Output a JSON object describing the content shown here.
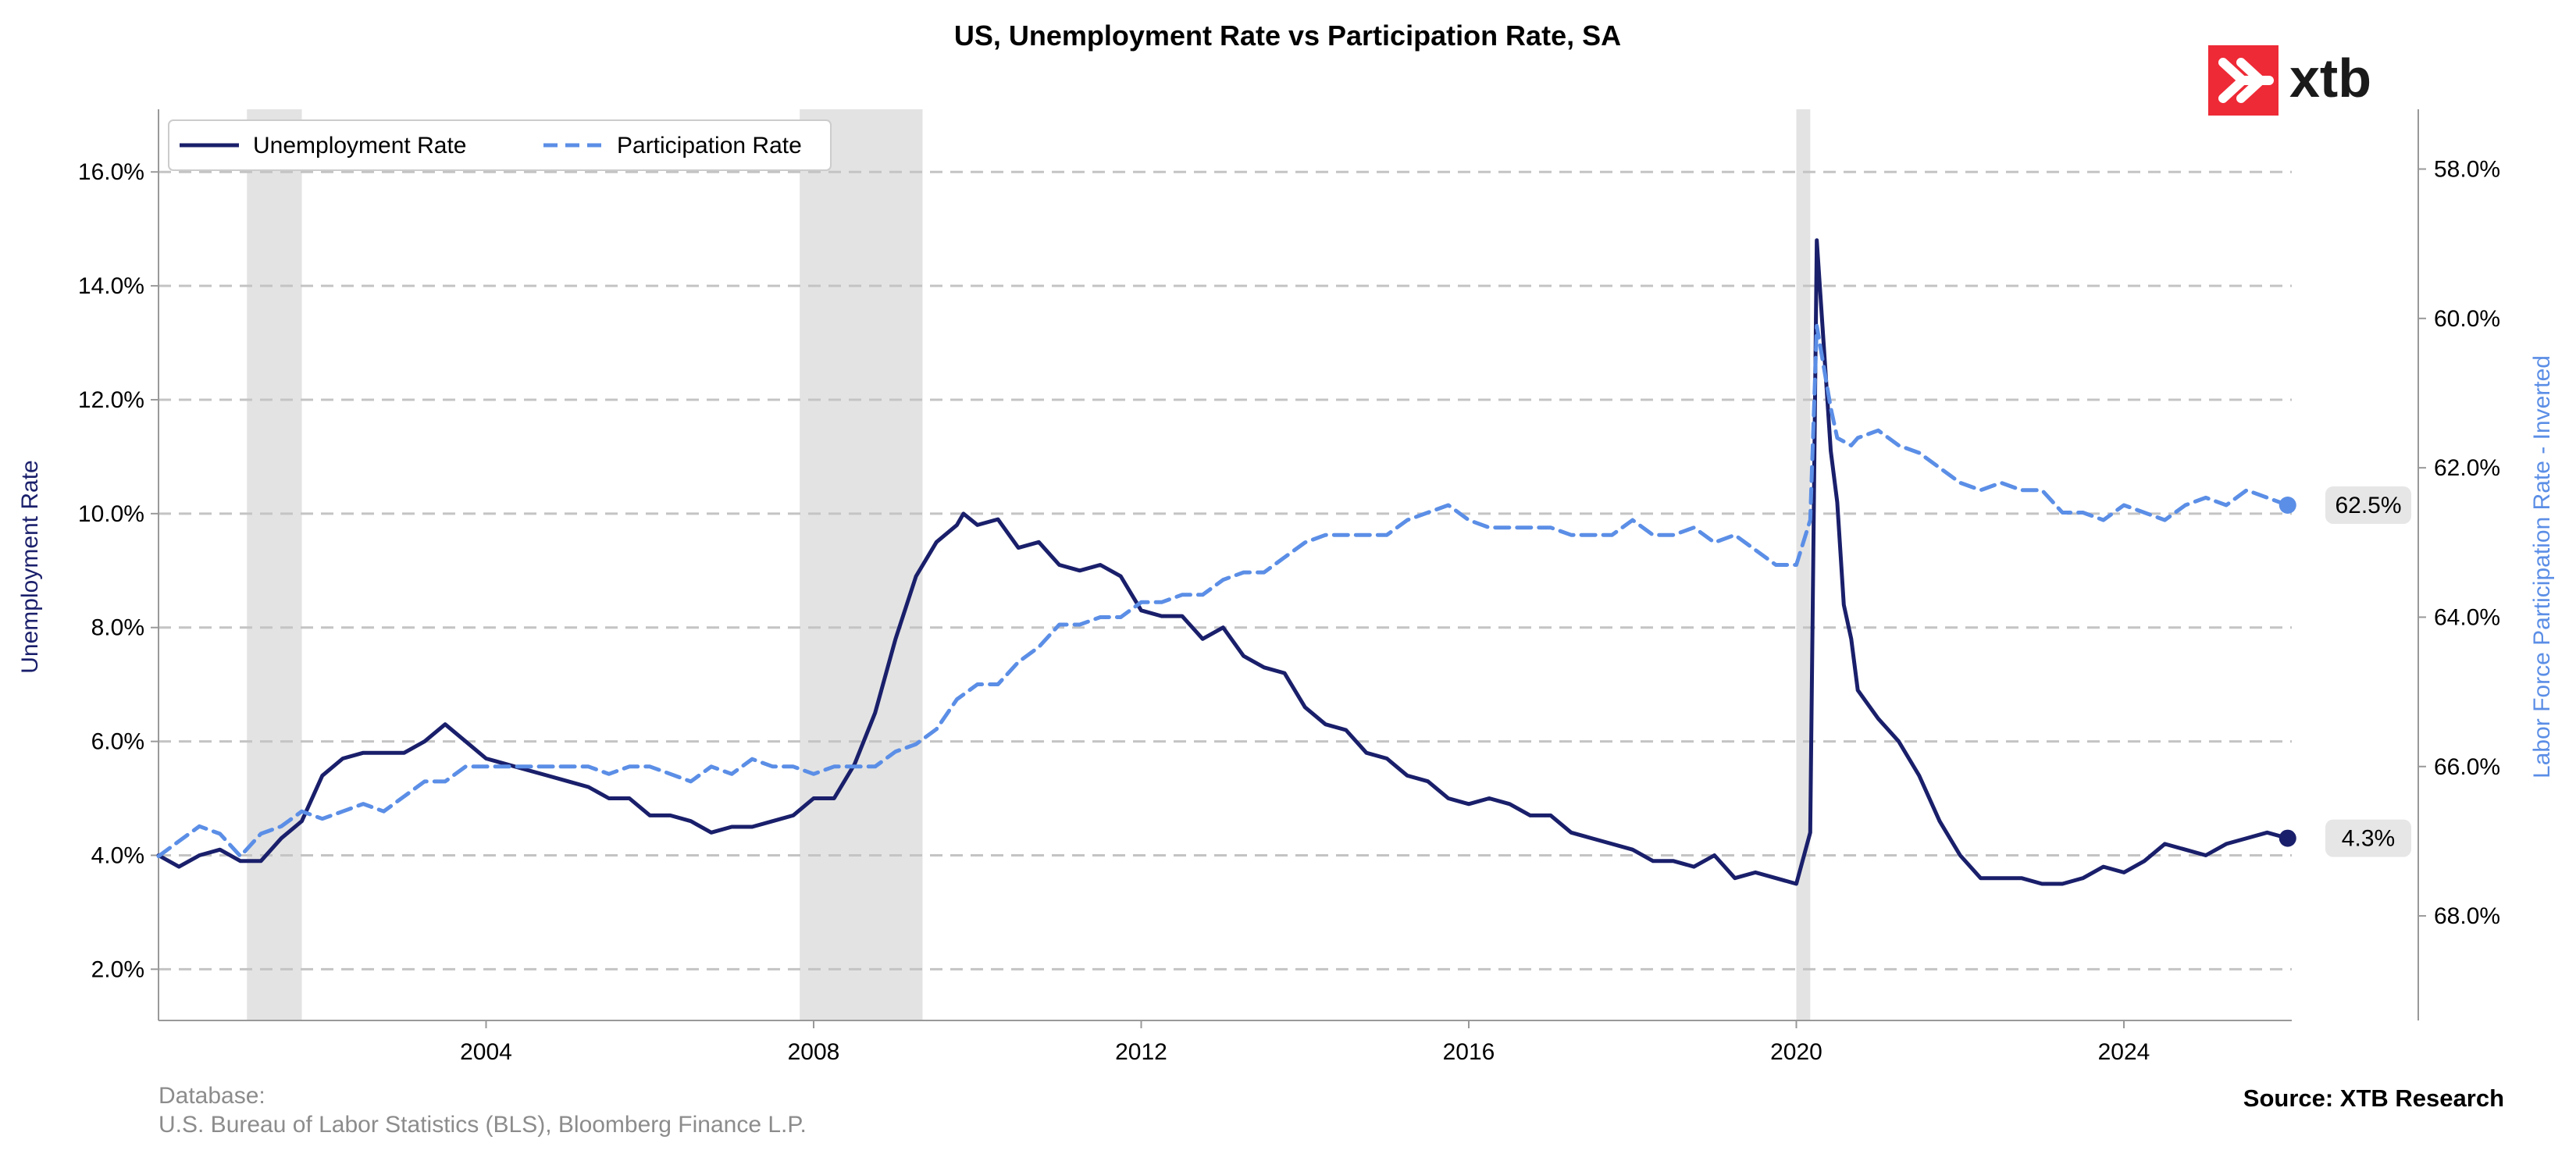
{
  "brand": {
    "logo_text": "xtb",
    "logo_color": "#ee2a36"
  },
  "footer": {
    "database_label": "Database:",
    "database_sources": "U.S. Bureau of Labor Statistics (BLS), Bloomberg Finance L.P.",
    "source": "Source: XTB Research"
  },
  "chart_data": {
    "type": "line",
    "title": "US, Unemployment Rate vs Participation Rate, SA",
    "xlabel": "",
    "ylabel_left": "Unemployment Rate",
    "ylabel_right": "Labor Force Participation Rate - Inverted",
    "x_range": [
      2000.0,
      2026.05
    ],
    "x_ticks": [
      2004,
      2008,
      2012,
      2016,
      2020,
      2024
    ],
    "y_left_range": [
      1.1,
      17.1
    ],
    "y_left_ticks": [
      "2.0%",
      "4.0%",
      "6.0%",
      "8.0%",
      "10.0%",
      "12.0%",
      "14.0%",
      "16.0%"
    ],
    "y_left_tick_values": [
      2,
      4,
      6,
      8,
      10,
      12,
      14,
      16
    ],
    "y_right_range": [
      69.4,
      57.2
    ],
    "y_right_inverted": true,
    "y_right_ticks": [
      "58.0%",
      "60.0%",
      "62.0%",
      "64.0%",
      "66.0%",
      "68.0%"
    ],
    "y_right_tick_values": [
      58,
      60,
      62,
      64,
      66,
      68
    ],
    "grid": "horizontal-dashed",
    "legend_position": "top-left",
    "recessions": [
      [
        2001.08,
        2001.75
      ],
      [
        2007.83,
        2009.33
      ],
      [
        2020.0,
        2020.17
      ]
    ],
    "series": [
      {
        "name": "Unemployment Rate",
        "axis": "left",
        "color": "#1a1f6b",
        "style": "solid",
        "last_label": "4.3%",
        "points": [
          [
            2000.0,
            4.0
          ],
          [
            2000.25,
            3.8
          ],
          [
            2000.5,
            4.0
          ],
          [
            2000.75,
            4.1
          ],
          [
            2001.0,
            3.9
          ],
          [
            2001.25,
            3.9
          ],
          [
            2001.5,
            4.3
          ],
          [
            2001.75,
            4.6
          ],
          [
            2002.0,
            5.4
          ],
          [
            2002.25,
            5.7
          ],
          [
            2002.5,
            5.8
          ],
          [
            2002.75,
            5.8
          ],
          [
            2003.0,
            5.8
          ],
          [
            2003.25,
            6.0
          ],
          [
            2003.5,
            6.3
          ],
          [
            2003.75,
            6.0
          ],
          [
            2004.0,
            5.7
          ],
          [
            2004.25,
            5.6
          ],
          [
            2004.5,
            5.5
          ],
          [
            2004.75,
            5.4
          ],
          [
            2005.0,
            5.3
          ],
          [
            2005.25,
            5.2
          ],
          [
            2005.5,
            5.0
          ],
          [
            2005.75,
            5.0
          ],
          [
            2006.0,
            4.7
          ],
          [
            2006.25,
            4.7
          ],
          [
            2006.5,
            4.6
          ],
          [
            2006.75,
            4.4
          ],
          [
            2007.0,
            4.5
          ],
          [
            2007.25,
            4.5
          ],
          [
            2007.5,
            4.6
          ],
          [
            2007.75,
            4.7
          ],
          [
            2008.0,
            5.0
          ],
          [
            2008.25,
            5.0
          ],
          [
            2008.5,
            5.6
          ],
          [
            2008.75,
            6.5
          ],
          [
            2009.0,
            7.8
          ],
          [
            2009.25,
            8.9
          ],
          [
            2009.5,
            9.5
          ],
          [
            2009.75,
            9.8
          ],
          [
            2009.83,
            10.0
          ],
          [
            2010.0,
            9.8
          ],
          [
            2010.25,
            9.9
          ],
          [
            2010.5,
            9.4
          ],
          [
            2010.75,
            9.5
          ],
          [
            2011.0,
            9.1
          ],
          [
            2011.25,
            9.0
          ],
          [
            2011.5,
            9.1
          ],
          [
            2011.75,
            8.9
          ],
          [
            2012.0,
            8.3
          ],
          [
            2012.25,
            8.2
          ],
          [
            2012.5,
            8.2
          ],
          [
            2012.75,
            7.8
          ],
          [
            2013.0,
            8.0
          ],
          [
            2013.25,
            7.5
          ],
          [
            2013.5,
            7.3
          ],
          [
            2013.75,
            7.2
          ],
          [
            2014.0,
            6.6
          ],
          [
            2014.25,
            6.3
          ],
          [
            2014.5,
            6.2
          ],
          [
            2014.75,
            5.8
          ],
          [
            2015.0,
            5.7
          ],
          [
            2015.25,
            5.4
          ],
          [
            2015.5,
            5.3
          ],
          [
            2015.75,
            5.0
          ],
          [
            2016.0,
            4.9
          ],
          [
            2016.25,
            5.0
          ],
          [
            2016.5,
            4.9
          ],
          [
            2016.75,
            4.7
          ],
          [
            2017.0,
            4.7
          ],
          [
            2017.25,
            4.4
          ],
          [
            2017.5,
            4.3
          ],
          [
            2017.75,
            4.2
          ],
          [
            2018.0,
            4.1
          ],
          [
            2018.25,
            3.9
          ],
          [
            2018.5,
            3.9
          ],
          [
            2018.75,
            3.8
          ],
          [
            2019.0,
            4.0
          ],
          [
            2019.25,
            3.6
          ],
          [
            2019.5,
            3.7
          ],
          [
            2019.75,
            3.6
          ],
          [
            2020.0,
            3.5
          ],
          [
            2020.17,
            4.4
          ],
          [
            2020.25,
            14.8
          ],
          [
            2020.42,
            11.1
          ],
          [
            2020.5,
            10.2
          ],
          [
            2020.58,
            8.4
          ],
          [
            2020.67,
            7.8
          ],
          [
            2020.75,
            6.9
          ],
          [
            2021.0,
            6.4
          ],
          [
            2021.25,
            6.0
          ],
          [
            2021.5,
            5.4
          ],
          [
            2021.75,
            4.6
          ],
          [
            2022.0,
            4.0
          ],
          [
            2022.25,
            3.6
          ],
          [
            2022.5,
            3.6
          ],
          [
            2022.75,
            3.6
          ],
          [
            2023.0,
            3.5
          ],
          [
            2023.25,
            3.5
          ],
          [
            2023.5,
            3.6
          ],
          [
            2023.75,
            3.8
          ],
          [
            2024.0,
            3.7
          ],
          [
            2024.25,
            3.9
          ],
          [
            2024.5,
            4.2
          ],
          [
            2024.75,
            4.1
          ],
          [
            2025.0,
            4.0
          ],
          [
            2025.25,
            4.2
          ],
          [
            2025.5,
            4.3
          ],
          [
            2025.75,
            4.4
          ],
          [
            2026.0,
            4.3
          ]
        ]
      },
      {
        "name": "Participation Rate",
        "axis": "right",
        "color": "#5b8ee6",
        "style": "dashed",
        "last_label": "62.5%",
        "points": [
          [
            2000.0,
            67.2
          ],
          [
            2000.25,
            67.0
          ],
          [
            2000.5,
            66.8
          ],
          [
            2000.75,
            66.9
          ],
          [
            2001.0,
            67.2
          ],
          [
            2001.25,
            66.9
          ],
          [
            2001.5,
            66.8
          ],
          [
            2001.75,
            66.6
          ],
          [
            2002.0,
            66.7
          ],
          [
            2002.25,
            66.6
          ],
          [
            2002.5,
            66.5
          ],
          [
            2002.75,
            66.6
          ],
          [
            2003.0,
            66.4
          ],
          [
            2003.25,
            66.2
          ],
          [
            2003.5,
            66.2
          ],
          [
            2003.75,
            66.0
          ],
          [
            2004.0,
            66.0
          ],
          [
            2004.25,
            66.0
          ],
          [
            2004.5,
            66.0
          ],
          [
            2004.75,
            66.0
          ],
          [
            2005.0,
            66.0
          ],
          [
            2005.25,
            66.0
          ],
          [
            2005.5,
            66.1
          ],
          [
            2005.75,
            66.0
          ],
          [
            2006.0,
            66.0
          ],
          [
            2006.25,
            66.1
          ],
          [
            2006.5,
            66.2
          ],
          [
            2006.75,
            66.0
          ],
          [
            2007.0,
            66.1
          ],
          [
            2007.25,
            65.9
          ],
          [
            2007.5,
            66.0
          ],
          [
            2007.75,
            66.0
          ],
          [
            2008.0,
            66.1
          ],
          [
            2008.25,
            66.0
          ],
          [
            2008.5,
            66.0
          ],
          [
            2008.75,
            66.0
          ],
          [
            2009.0,
            65.8
          ],
          [
            2009.25,
            65.7
          ],
          [
            2009.5,
            65.5
          ],
          [
            2009.75,
            65.1
          ],
          [
            2010.0,
            64.9
          ],
          [
            2010.25,
            64.9
          ],
          [
            2010.5,
            64.6
          ],
          [
            2010.75,
            64.4
          ],
          [
            2011.0,
            64.1
          ],
          [
            2011.25,
            64.1
          ],
          [
            2011.5,
            64.0
          ],
          [
            2011.75,
            64.0
          ],
          [
            2012.0,
            63.8
          ],
          [
            2012.25,
            63.8
          ],
          [
            2012.5,
            63.7
          ],
          [
            2012.75,
            63.7
          ],
          [
            2013.0,
            63.5
          ],
          [
            2013.25,
            63.4
          ],
          [
            2013.5,
            63.4
          ],
          [
            2013.75,
            63.2
          ],
          [
            2014.0,
            63.0
          ],
          [
            2014.25,
            62.9
          ],
          [
            2014.5,
            62.9
          ],
          [
            2014.75,
            62.9
          ],
          [
            2015.0,
            62.9
          ],
          [
            2015.25,
            62.7
          ],
          [
            2015.5,
            62.6
          ],
          [
            2015.75,
            62.5
          ],
          [
            2016.0,
            62.7
          ],
          [
            2016.25,
            62.8
          ],
          [
            2016.5,
            62.8
          ],
          [
            2016.75,
            62.8
          ],
          [
            2017.0,
            62.8
          ],
          [
            2017.25,
            62.9
          ],
          [
            2017.5,
            62.9
          ],
          [
            2017.75,
            62.9
          ],
          [
            2018.0,
            62.7
          ],
          [
            2018.25,
            62.9
          ],
          [
            2018.5,
            62.9
          ],
          [
            2018.75,
            62.8
          ],
          [
            2019.0,
            63.0
          ],
          [
            2019.25,
            62.9
          ],
          [
            2019.5,
            63.1
          ],
          [
            2019.75,
            63.3
          ],
          [
            2020.0,
            63.3
          ],
          [
            2020.17,
            62.7
          ],
          [
            2020.25,
            60.1
          ],
          [
            2020.42,
            61.2
          ],
          [
            2020.5,
            61.6
          ],
          [
            2020.67,
            61.7
          ],
          [
            2020.75,
            61.6
          ],
          [
            2021.0,
            61.5
          ],
          [
            2021.25,
            61.7
          ],
          [
            2021.5,
            61.8
          ],
          [
            2021.75,
            62.0
          ],
          [
            2022.0,
            62.2
          ],
          [
            2022.25,
            62.3
          ],
          [
            2022.5,
            62.2
          ],
          [
            2022.75,
            62.3
          ],
          [
            2023.0,
            62.3
          ],
          [
            2023.25,
            62.6
          ],
          [
            2023.5,
            62.6
          ],
          [
            2023.75,
            62.7
          ],
          [
            2024.0,
            62.5
          ],
          [
            2024.25,
            62.6
          ],
          [
            2024.5,
            62.7
          ],
          [
            2024.75,
            62.5
          ],
          [
            2025.0,
            62.4
          ],
          [
            2025.25,
            62.5
          ],
          [
            2025.5,
            62.3
          ],
          [
            2025.75,
            62.4
          ],
          [
            2026.0,
            62.5
          ]
        ]
      }
    ]
  }
}
